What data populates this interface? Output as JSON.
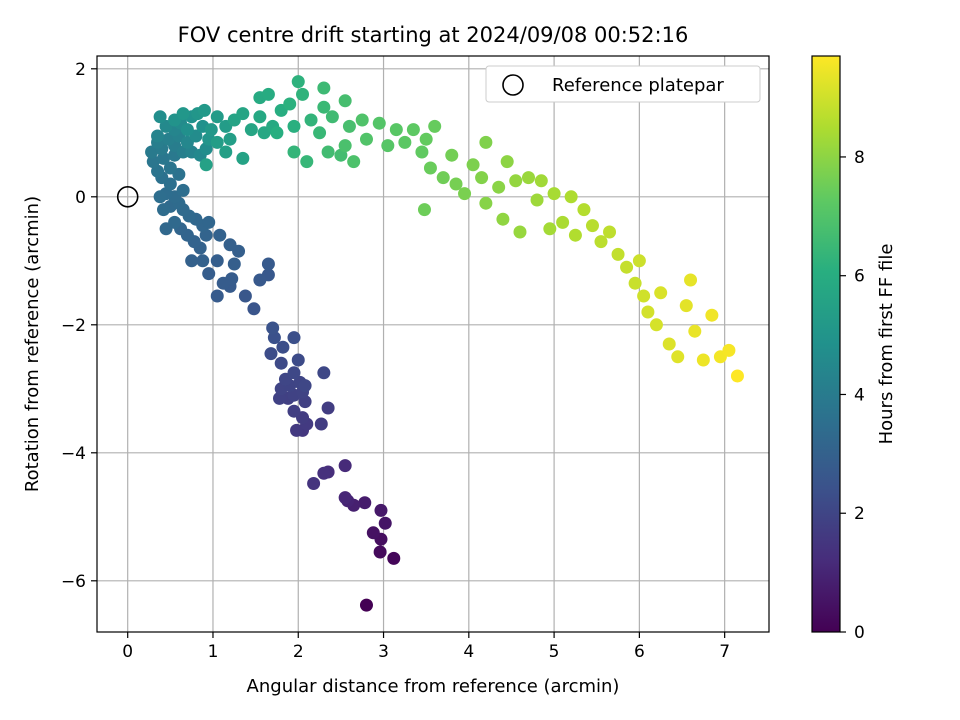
{
  "chart_data": {
    "type": "scatter",
    "title": "FOV centre drift starting at 2024/09/08 00:52:16",
    "xlabel": "Angular distance from reference (arcmin)",
    "ylabel": "Rotation from reference (arcmin)",
    "xlim": [
      -0.36,
      7.52
    ],
    "ylim": [
      -6.8,
      2.2
    ],
    "xticks": [
      "0",
      "1",
      "2",
      "3",
      "4",
      "5",
      "6",
      "7"
    ],
    "yticks": [
      "2",
      "0",
      "−2",
      "−4",
      "−6"
    ],
    "grid": true,
    "legend": {
      "placement": "top-right",
      "entries": [
        "Reference platepar"
      ]
    },
    "reference_point": {
      "x": 0,
      "y": 0
    },
    "colorbar": {
      "label": "Hours from first FF file",
      "colormap": "viridis",
      "range": [
        0,
        9.7
      ],
      "ticks": [
        "0",
        "2",
        "4",
        "6",
        "8"
      ]
    },
    "series": [
      {
        "color_by": "hours",
        "points": [
          {
            "x": 2.8,
            "y": -6.38,
            "h": 0.0
          },
          {
            "x": 3.12,
            "y": -5.65,
            "h": 0.15
          },
          {
            "x": 2.96,
            "y": -5.55,
            "h": 0.25
          },
          {
            "x": 2.97,
            "y": -5.35,
            "h": 0.35
          },
          {
            "x": 2.88,
            "y": -5.25,
            "h": 0.45
          },
          {
            "x": 3.02,
            "y": -5.1,
            "h": 0.55
          },
          {
            "x": 2.97,
            "y": -4.9,
            "h": 0.65
          },
          {
            "x": 2.78,
            "y": -4.78,
            "h": 0.75
          },
          {
            "x": 2.65,
            "y": -4.82,
            "h": 0.85
          },
          {
            "x": 2.58,
            "y": -4.75,
            "h": 0.95
          },
          {
            "x": 2.55,
            "y": -4.7,
            "h": 1.05
          },
          {
            "x": 2.55,
            "y": -4.2,
            "h": 1.15
          },
          {
            "x": 2.35,
            "y": -4.3,
            "h": 1.25
          },
          {
            "x": 2.3,
            "y": -4.32,
            "h": 1.35
          },
          {
            "x": 2.18,
            "y": -4.48,
            "h": 1.45
          },
          {
            "x": 2.05,
            "y": -3.65,
            "h": 1.55
          },
          {
            "x": 1.98,
            "y": -3.65,
            "h": 1.6
          },
          {
            "x": 2.1,
            "y": -3.55,
            "h": 1.65
          },
          {
            "x": 2.05,
            "y": -3.45,
            "h": 1.7
          },
          {
            "x": 2.27,
            "y": -3.55,
            "h": 1.72
          },
          {
            "x": 2.35,
            "y": -3.3,
            "h": 1.75
          },
          {
            "x": 1.95,
            "y": -3.35,
            "h": 1.78
          },
          {
            "x": 2.08,
            "y": -3.2,
            "h": 1.82
          },
          {
            "x": 1.88,
            "y": -3.15,
            "h": 1.85
          },
          {
            "x": 1.78,
            "y": -3.15,
            "h": 1.88
          },
          {
            "x": 1.95,
            "y": -3.1,
            "h": 1.9
          },
          {
            "x": 2.05,
            "y": -3.05,
            "h": 1.92
          },
          {
            "x": 1.8,
            "y": -3.0,
            "h": 1.95
          },
          {
            "x": 1.9,
            "y": -2.95,
            "h": 1.98
          },
          {
            "x": 2.02,
            "y": -2.9,
            "h": 2.0
          },
          {
            "x": 1.85,
            "y": -2.85,
            "h": 2.02
          },
          {
            "x": 2.08,
            "y": -2.95,
            "h": 2.05
          },
          {
            "x": 2.3,
            "y": -2.75,
            "h": 2.08
          },
          {
            "x": 1.95,
            "y": -2.75,
            "h": 2.1
          },
          {
            "x": 1.8,
            "y": -2.6,
            "h": 2.15
          },
          {
            "x": 2.0,
            "y": -2.55,
            "h": 2.2
          },
          {
            "x": 1.68,
            "y": -2.45,
            "h": 2.25
          },
          {
            "x": 1.82,
            "y": -2.35,
            "h": 2.3
          },
          {
            "x": 1.95,
            "y": -2.2,
            "h": 2.35
          },
          {
            "x": 1.72,
            "y": -2.2,
            "h": 2.4
          },
          {
            "x": 1.7,
            "y": -2.05,
            "h": 2.45
          },
          {
            "x": 1.48,
            "y": -1.75,
            "h": 2.52
          },
          {
            "x": 1.38,
            "y": -1.55,
            "h": 2.6
          },
          {
            "x": 1.65,
            "y": -1.22,
            "h": 2.65
          },
          {
            "x": 1.55,
            "y": -1.3,
            "h": 2.7
          },
          {
            "x": 1.65,
            "y": -1.05,
            "h": 2.72
          },
          {
            "x": 1.05,
            "y": -1.55,
            "h": 2.75
          },
          {
            "x": 1.2,
            "y": -1.4,
            "h": 2.78
          },
          {
            "x": 1.12,
            "y": -1.35,
            "h": 2.8
          },
          {
            "x": 1.22,
            "y": -1.28,
            "h": 2.82
          },
          {
            "x": 0.95,
            "y": -1.2,
            "h": 2.85
          },
          {
            "x": 1.05,
            "y": -1.0,
            "h": 2.88
          },
          {
            "x": 1.25,
            "y": -1.05,
            "h": 2.9
          },
          {
            "x": 1.3,
            "y": -0.85,
            "h": 2.92
          },
          {
            "x": 1.2,
            "y": -0.75,
            "h": 2.95
          },
          {
            "x": 0.88,
            "y": -1.0,
            "h": 2.98
          },
          {
            "x": 0.75,
            "y": -1.0,
            "h": 3.0
          },
          {
            "x": 0.85,
            "y": -0.8,
            "h": 3.02
          },
          {
            "x": 1.08,
            "y": -0.6,
            "h": 3.05
          },
          {
            "x": 0.78,
            "y": -0.7,
            "h": 3.08
          },
          {
            "x": 0.92,
            "y": -0.6,
            "h": 3.1
          },
          {
            "x": 0.7,
            "y": -0.6,
            "h": 3.12
          },
          {
            "x": 0.62,
            "y": -0.5,
            "h": 3.15
          },
          {
            "x": 0.88,
            "y": -0.45,
            "h": 3.18
          },
          {
            "x": 0.95,
            "y": -0.4,
            "h": 3.2
          },
          {
            "x": 0.8,
            "y": -0.35,
            "h": 3.22
          },
          {
            "x": 0.45,
            "y": -0.5,
            "h": 3.25
          },
          {
            "x": 0.55,
            "y": -0.4,
            "h": 3.28
          },
          {
            "x": 0.72,
            "y": -0.3,
            "h": 3.3
          },
          {
            "x": 0.65,
            "y": -0.2,
            "h": 3.32
          },
          {
            "x": 0.5,
            "y": -0.15,
            "h": 3.35
          },
          {
            "x": 0.6,
            "y": -0.1,
            "h": 3.38
          },
          {
            "x": 0.42,
            "y": -0.2,
            "h": 3.4
          },
          {
            "x": 0.55,
            "y": 0.0,
            "h": 3.42
          },
          {
            "x": 0.45,
            "y": 0.05,
            "h": 3.45
          },
          {
            "x": 0.38,
            "y": 0.0,
            "h": 3.48
          },
          {
            "x": 0.65,
            "y": 0.1,
            "h": 3.5
          },
          {
            "x": 0.5,
            "y": 0.2,
            "h": 3.55
          },
          {
            "x": 0.4,
            "y": 0.3,
            "h": 3.6
          },
          {
            "x": 0.6,
            "y": 0.35,
            "h": 3.65
          },
          {
            "x": 0.35,
            "y": 0.4,
            "h": 3.7
          },
          {
            "x": 0.5,
            "y": 0.45,
            "h": 3.75
          },
          {
            "x": 0.3,
            "y": 0.55,
            "h": 3.8
          },
          {
            "x": 0.42,
            "y": 0.6,
            "h": 3.85
          },
          {
            "x": 0.55,
            "y": 0.65,
            "h": 3.9
          },
          {
            "x": 0.28,
            "y": 0.7,
            "h": 3.95
          },
          {
            "x": 0.4,
            "y": 0.75,
            "h": 4.0
          },
          {
            "x": 0.55,
            "y": 0.8,
            "h": 4.05
          },
          {
            "x": 0.35,
            "y": 0.85,
            "h": 4.1
          },
          {
            "x": 0.65,
            "y": 0.7,
            "h": 4.15
          },
          {
            "x": 0.48,
            "y": 0.9,
            "h": 4.2
          },
          {
            "x": 0.6,
            "y": 0.95,
            "h": 4.25
          },
          {
            "x": 0.75,
            "y": 0.7,
            "h": 4.3
          },
          {
            "x": 0.35,
            "y": 0.95,
            "h": 4.35
          },
          {
            "x": 0.55,
            "y": 1.05,
            "h": 4.4
          },
          {
            "x": 0.7,
            "y": 0.85,
            "h": 4.45
          },
          {
            "x": 0.85,
            "y": 0.65,
            "h": 4.5
          },
          {
            "x": 0.45,
            "y": 1.1,
            "h": 4.55
          },
          {
            "x": 0.62,
            "y": 1.15,
            "h": 4.6
          },
          {
            "x": 0.8,
            "y": 0.95,
            "h": 4.65
          },
          {
            "x": 0.92,
            "y": 0.75,
            "h": 4.7
          },
          {
            "x": 0.38,
            "y": 1.25,
            "h": 4.75
          },
          {
            "x": 0.7,
            "y": 1.05,
            "h": 4.8
          },
          {
            "x": 0.88,
            "y": 1.1,
            "h": 4.85
          },
          {
            "x": 0.75,
            "y": 1.25,
            "h": 4.9
          },
          {
            "x": 0.55,
            "y": 1.2,
            "h": 4.95
          },
          {
            "x": 0.95,
            "y": 0.9,
            "h": 5.0
          },
          {
            "x": 0.82,
            "y": 1.3,
            "h": 5.05
          },
          {
            "x": 0.65,
            "y": 1.3,
            "h": 5.1
          },
          {
            "x": 0.98,
            "y": 1.05,
            "h": 5.15
          },
          {
            "x": 0.9,
            "y": 1.35,
            "h": 5.2
          },
          {
            "x": 1.05,
            "y": 1.25,
            "h": 5.25
          },
          {
            "x": 1.15,
            "y": 1.1,
            "h": 5.3
          },
          {
            "x": 1.05,
            "y": 0.85,
            "h": 5.35
          },
          {
            "x": 1.2,
            "y": 0.9,
            "h": 5.4
          },
          {
            "x": 1.15,
            "y": 0.7,
            "h": 5.45
          },
          {
            "x": 0.92,
            "y": 0.5,
            "h": 5.5
          },
          {
            "x": 1.35,
            "y": 0.6,
            "h": 5.55
          },
          {
            "x": 1.25,
            "y": 1.2,
            "h": 5.6
          },
          {
            "x": 1.35,
            "y": 1.3,
            "h": 5.65
          },
          {
            "x": 1.45,
            "y": 1.05,
            "h": 5.7
          },
          {
            "x": 1.6,
            "y": 1.0,
            "h": 5.75
          },
          {
            "x": 1.55,
            "y": 1.25,
            "h": 5.8
          },
          {
            "x": 1.7,
            "y": 1.1,
            "h": 5.85
          },
          {
            "x": 1.55,
            "y": 1.55,
            "h": 5.9
          },
          {
            "x": 1.65,
            "y": 1.6,
            "h": 5.95
          },
          {
            "x": 1.8,
            "y": 1.35,
            "h": 6.0
          },
          {
            "x": 1.75,
            "y": 1.0,
            "h": 6.05
          },
          {
            "x": 1.95,
            "y": 1.1,
            "h": 6.1
          },
          {
            "x": 1.9,
            "y": 1.45,
            "h": 6.15
          },
          {
            "x": 2.0,
            "y": 1.8,
            "h": 6.2
          },
          {
            "x": 2.05,
            "y": 1.6,
            "h": 6.25
          },
          {
            "x": 2.15,
            "y": 1.2,
            "h": 6.3
          },
          {
            "x": 1.95,
            "y": 0.7,
            "h": 6.35
          },
          {
            "x": 2.1,
            "y": 0.55,
            "h": 6.4
          },
          {
            "x": 2.25,
            "y": 1.0,
            "h": 6.45
          },
          {
            "x": 2.3,
            "y": 1.4,
            "h": 6.5
          },
          {
            "x": 2.3,
            "y": 1.7,
            "h": 6.55
          },
          {
            "x": 2.4,
            "y": 1.25,
            "h": 6.6
          },
          {
            "x": 2.35,
            "y": 0.7,
            "h": 6.65
          },
          {
            "x": 2.5,
            "y": 0.65,
            "h": 6.7
          },
          {
            "x": 2.55,
            "y": 1.5,
            "h": 6.75
          },
          {
            "x": 2.6,
            "y": 1.1,
            "h": 6.8
          },
          {
            "x": 2.55,
            "y": 0.8,
            "h": 6.85
          },
          {
            "x": 2.65,
            "y": 0.55,
            "h": 6.9
          },
          {
            "x": 2.75,
            "y": 1.2,
            "h": 6.95
          },
          {
            "x": 2.8,
            "y": 0.9,
            "h": 7.0
          },
          {
            "x": 2.95,
            "y": 1.15,
            "h": 7.05
          },
          {
            "x": 3.05,
            "y": 0.8,
            "h": 7.1
          },
          {
            "x": 3.15,
            "y": 1.05,
            "h": 7.15
          },
          {
            "x": 3.25,
            "y": 0.85,
            "h": 7.2
          },
          {
            "x": 3.35,
            "y": 1.05,
            "h": 7.25
          },
          {
            "x": 3.45,
            "y": 0.7,
            "h": 7.3
          },
          {
            "x": 3.5,
            "y": 0.9,
            "h": 7.35
          },
          {
            "x": 3.6,
            "y": 1.1,
            "h": 7.4
          },
          {
            "x": 3.55,
            "y": 0.45,
            "h": 7.45
          },
          {
            "x": 3.48,
            "y": -0.2,
            "h": 7.5
          },
          {
            "x": 3.7,
            "y": 0.3,
            "h": 7.55
          },
          {
            "x": 3.8,
            "y": 0.65,
            "h": 7.6
          },
          {
            "x": 3.85,
            "y": 0.2,
            "h": 7.65
          },
          {
            "x": 3.95,
            "y": 0.05,
            "h": 7.7
          },
          {
            "x": 4.05,
            "y": 0.5,
            "h": 7.75
          },
          {
            "x": 4.2,
            "y": 0.85,
            "h": 7.8
          },
          {
            "x": 4.15,
            "y": 0.3,
            "h": 7.85
          },
          {
            "x": 4.2,
            "y": -0.1,
            "h": 7.9
          },
          {
            "x": 4.35,
            "y": 0.15,
            "h": 7.95
          },
          {
            "x": 4.45,
            "y": 0.55,
            "h": 8.0
          },
          {
            "x": 4.4,
            "y": -0.35,
            "h": 8.05
          },
          {
            "x": 4.55,
            "y": 0.25,
            "h": 8.1
          },
          {
            "x": 4.6,
            "y": -0.55,
            "h": 8.15
          },
          {
            "x": 4.7,
            "y": 0.3,
            "h": 8.2
          },
          {
            "x": 4.8,
            "y": -0.05,
            "h": 8.25
          },
          {
            "x": 4.85,
            "y": 0.25,
            "h": 8.3
          },
          {
            "x": 4.95,
            "y": -0.5,
            "h": 8.35
          },
          {
            "x": 5.0,
            "y": 0.05,
            "h": 8.4
          },
          {
            "x": 5.1,
            "y": -0.4,
            "h": 8.45
          },
          {
            "x": 5.2,
            "y": 0.0,
            "h": 8.5
          },
          {
            "x": 5.25,
            "y": -0.6,
            "h": 8.55
          },
          {
            "x": 5.35,
            "y": -0.2,
            "h": 8.6
          },
          {
            "x": 5.45,
            "y": -0.45,
            "h": 8.65
          },
          {
            "x": 5.55,
            "y": -0.7,
            "h": 8.7
          },
          {
            "x": 5.65,
            "y": -0.55,
            "h": 8.75
          },
          {
            "x": 5.75,
            "y": -0.9,
            "h": 8.8
          },
          {
            "x": 5.85,
            "y": -1.1,
            "h": 8.85
          },
          {
            "x": 5.95,
            "y": -1.35,
            "h": 8.9
          },
          {
            "x": 6.0,
            "y": -1.0,
            "h": 8.95
          },
          {
            "x": 6.05,
            "y": -1.55,
            "h": 9.0
          },
          {
            "x": 6.1,
            "y": -1.8,
            "h": 9.05
          },
          {
            "x": 6.2,
            "y": -2.0,
            "h": 9.1
          },
          {
            "x": 6.25,
            "y": -1.5,
            "h": 9.15
          },
          {
            "x": 6.35,
            "y": -2.3,
            "h": 9.2
          },
          {
            "x": 6.45,
            "y": -2.5,
            "h": 9.25
          },
          {
            "x": 6.55,
            "y": -1.7,
            "h": 9.3
          },
          {
            "x": 6.6,
            "y": -1.3,
            "h": 9.35
          },
          {
            "x": 6.65,
            "y": -2.1,
            "h": 9.4
          },
          {
            "x": 6.75,
            "y": -2.55,
            "h": 9.45
          },
          {
            "x": 6.85,
            "y": -1.85,
            "h": 9.5
          },
          {
            "x": 6.95,
            "y": -2.5,
            "h": 9.55
          },
          {
            "x": 7.05,
            "y": -2.4,
            "h": 9.6
          },
          {
            "x": 7.15,
            "y": -2.8,
            "h": 9.7
          }
        ]
      }
    ]
  }
}
